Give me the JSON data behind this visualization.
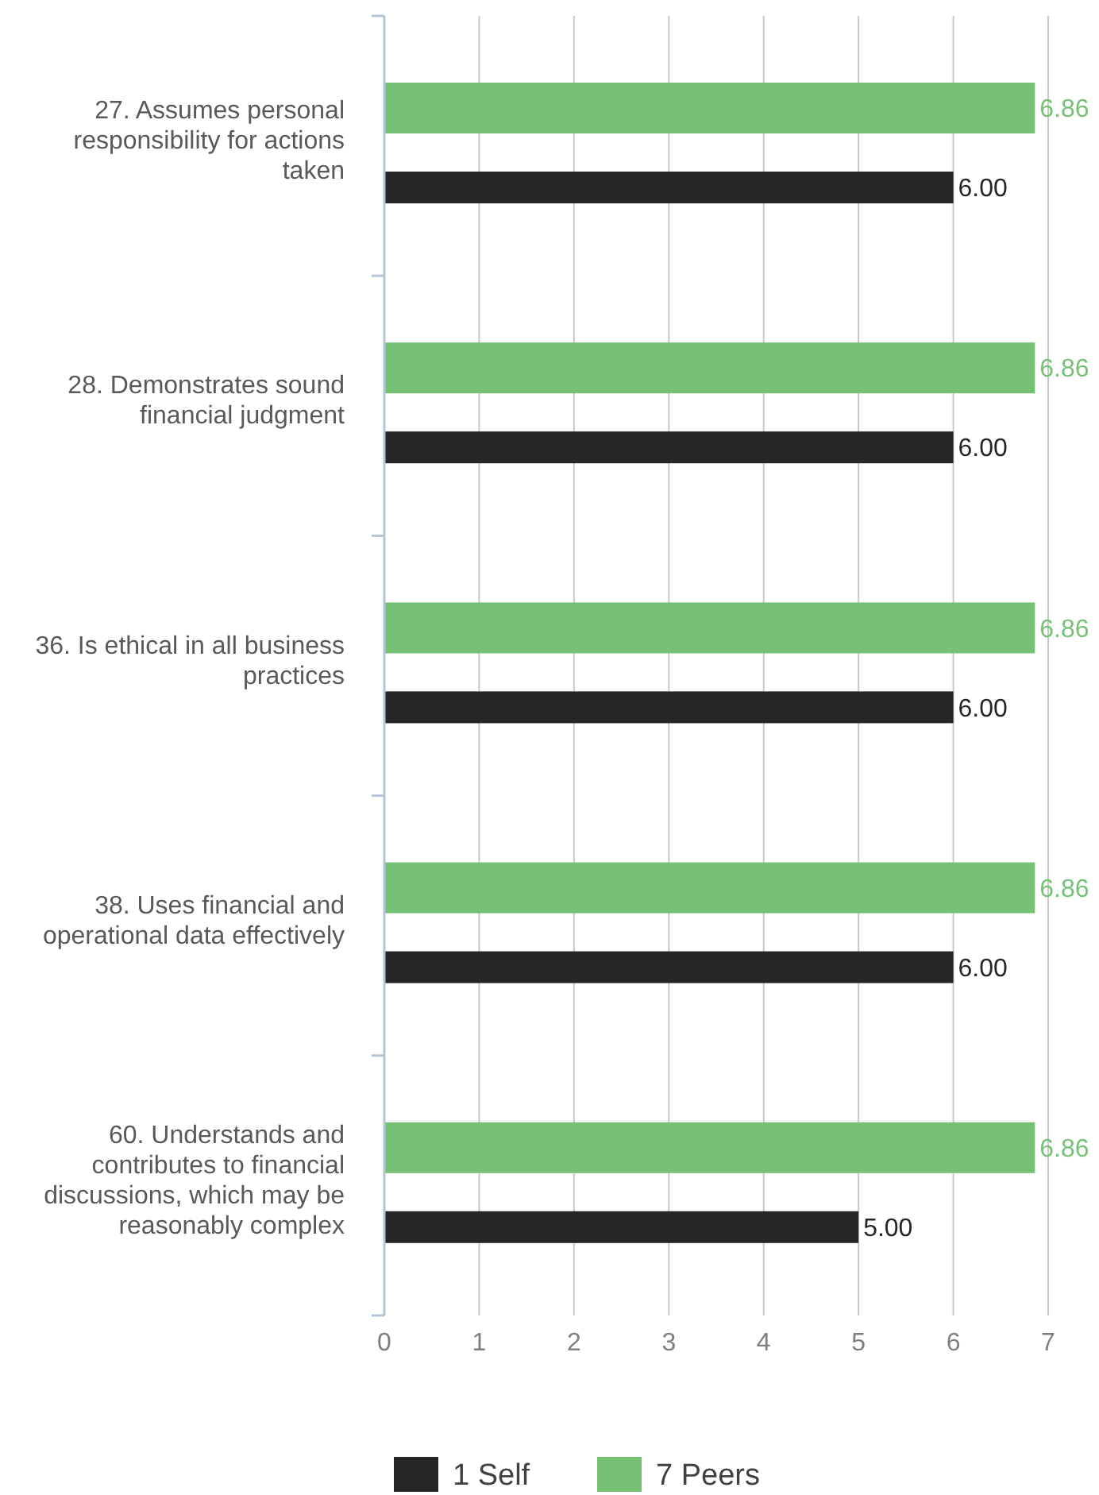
{
  "chart_data": {
    "type": "bar",
    "orientation": "horizontal",
    "categories": [
      "27. Assumes personal responsibility for actions taken",
      "28. Demonstrates sound financial judgment",
      "36. Is ethical in all business practices",
      "38. Uses financial and operational data effectively",
      "60. Understands and contributes to financial discussions, which may be reasonably complex"
    ],
    "series": [
      {
        "name": "1 Self",
        "color": "#262626",
        "values": [
          6,
          6,
          6,
          6,
          5
        ],
        "value_labels": [
          "6.00",
          "6.00",
          "6.00",
          "6.00",
          "5.00"
        ]
      },
      {
        "name": "7 Peers",
        "color": "#77c177",
        "values": [
          6.86,
          6.86,
          6.86,
          6.86,
          6.86
        ],
        "value_labels": [
          "6.86",
          "6.86",
          "6.86",
          "6.86",
          "6.86"
        ]
      }
    ],
    "xlim": [
      0,
      7
    ],
    "xticks": [
      0,
      1,
      2,
      3,
      4,
      5,
      6,
      7
    ],
    "grid": "x",
    "legend": "bottom"
  }
}
